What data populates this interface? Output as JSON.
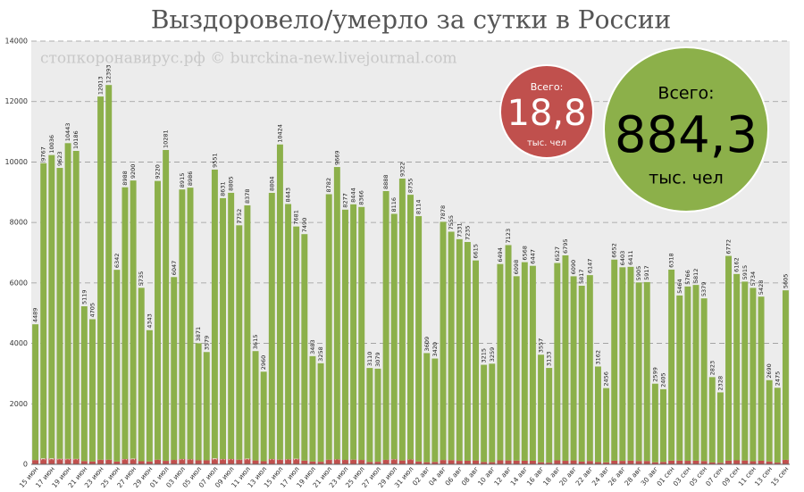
{
  "chart_data": {
    "type": "bar",
    "stacked": true,
    "title": "Выздоровело/умерло за сутки в России",
    "watermark": "стопкоронавирус.рф © burckina-new.livejournal.com",
    "annotations": [
      {
        "label": "Всего:",
        "value": "18,8",
        "unit": "тыс. чел",
        "color": "#c0504d"
      },
      {
        "label": "Всего:",
        "value": "884,3",
        "unit": "тыс. чел",
        "color": "#8cb04a"
      }
    ],
    "categories": [
      "15 июн",
      null,
      "17 июн",
      null,
      "19 июн",
      null,
      "21 июн",
      null,
      "23 июн",
      null,
      "25 июн",
      null,
      "27 июн",
      null,
      "29 июн",
      null,
      "01 июл",
      null,
      "03 июл",
      null,
      "05 июл",
      null,
      "07 июл",
      null,
      "09 июл",
      null,
      "11 июл",
      null,
      "13 июл",
      null,
      "15 июл",
      null,
      "17 июл",
      null,
      "19 июл",
      null,
      "21 июл",
      null,
      "23 июл",
      null,
      "25 июл",
      null,
      "27 июл",
      null,
      "29 июл",
      null,
      "31 июл",
      null,
      "02 авг",
      null,
      "04 авг",
      null,
      "06 авг",
      null,
      "08 авг",
      null,
      "10 авг",
      null,
      "12 авг",
      null,
      "14 авг",
      null,
      "16 авг",
      null,
      "18 авг",
      null,
      "20 авг",
      null,
      "22 авг",
      null,
      "24 авг",
      null,
      "26 авг",
      null,
      "28 авг",
      null,
      "30 авг",
      null,
      "01 сен",
      null,
      "03 сен",
      null,
      "05 сен",
      null,
      "07 сен",
      null,
      "09 сен",
      null,
      "11 сен",
      null,
      "13 сен",
      null,
      "15 сен"
    ],
    "series": [
      {
        "color": "#c0504d",
        "values": [
          143,
          193,
          194,
          182,
          181,
          181,
          109,
          95,
          153,
          154,
          92,
          176,
          188,
          104,
          94,
          154,
          116,
          147,
          176,
          166,
          134,
          135,
          198,
          173,
          176,
          154,
          188,
          130,
          104,
          175,
          156,
          167,
          186,
          124,
          95,
          85,
          153,
          165,
          147,
          156,
          146,
          77,
          85,
          150,
          169,
          129,
          161,
          95,
          70,
          79,
          144,
          139,
          116,
          119,
          129,
          77,
          70,
          132,
          129,
          124,
          119,
          119,
          68,
          55,
          132,
          117,
          130,
          90,
          111,
          73,
          65,
          120,
          115,
          121,
          111,
          111,
          68,
          80,
          123,
          121,
          117,
          121,
          110,
          61,
          51,
          122,
          133,
          128,
          102,
          119,
          94,
          57,
          150
        ]
      },
      {
        "color": "#8cb04a",
        "values": [
          4489,
          9767,
          10036,
          9623,
          10443,
          10186,
          5119,
          4705,
          12013,
          12393,
          6342,
          8988,
          9200,
          5735,
          4343,
          9220,
          10281,
          6047,
          8915,
          8986,
          3871,
          3579,
          9551,
          8631,
          8805,
          7752,
          8378,
          3615,
          2960,
          8804,
          10424,
          8443,
          7681,
          7490,
          3483,
          3258,
          8782,
          9669,
          8277,
          8444,
          8366,
          3110,
          3079,
          8888,
          8116,
          9322,
          8755,
          8114,
          3609,
          3420,
          7878,
          7555,
          7331,
          7235,
          6615,
          3215,
          3259,
          6494,
          7123,
          6098,
          6568,
          6447,
          3557,
          3133,
          6527,
          6795,
          6090,
          5817,
          6147,
          3162,
          2456,
          6652,
          6403,
          6411,
          5905,
          5917,
          2599,
          2405,
          6318,
          5464,
          5766,
          5812,
          5379,
          2823,
          2328,
          6772,
          6162,
          5915,
          5734,
          5428,
          2690,
          2475,
          5605
        ]
      }
    ],
    "ylim": [
      0,
      14000
    ],
    "yticks": [
      0,
      2000,
      4000,
      6000,
      8000,
      10000,
      12000,
      14000
    ],
    "grid": true
  }
}
